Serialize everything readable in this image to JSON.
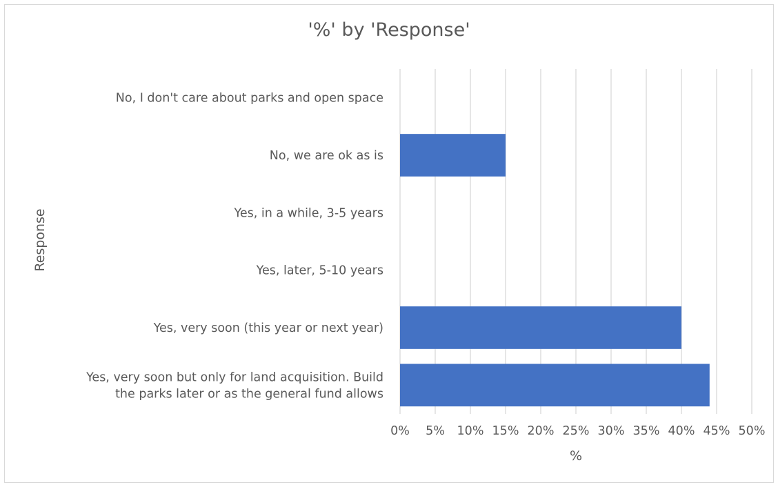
{
  "chart_data": {
    "type": "bar",
    "orientation": "horizontal",
    "title": "'%' by 'Response'",
    "xlabel": "%",
    "ylabel": "Response",
    "xlim": [
      0,
      50
    ],
    "x_ticks": [
      "0%",
      "5%",
      "10%",
      "15%",
      "20%",
      "25%",
      "30%",
      "35%",
      "40%",
      "45%",
      "50%"
    ],
    "grid": true,
    "bar_color": "#4472c4",
    "categories": [
      [
        "No, I don't care about parks and open space"
      ],
      [
        "No, we are ok as is"
      ],
      [
        "Yes, in a while, 3-5 years"
      ],
      [
        "Yes, later, 5-10 years"
      ],
      [
        "Yes, very soon (this year or next year)"
      ],
      [
        "Yes, very soon but only for land acquisition. Build",
        "the parks later or as the general fund allows"
      ]
    ],
    "values": [
      0,
      15,
      0,
      0,
      40,
      44
    ]
  }
}
